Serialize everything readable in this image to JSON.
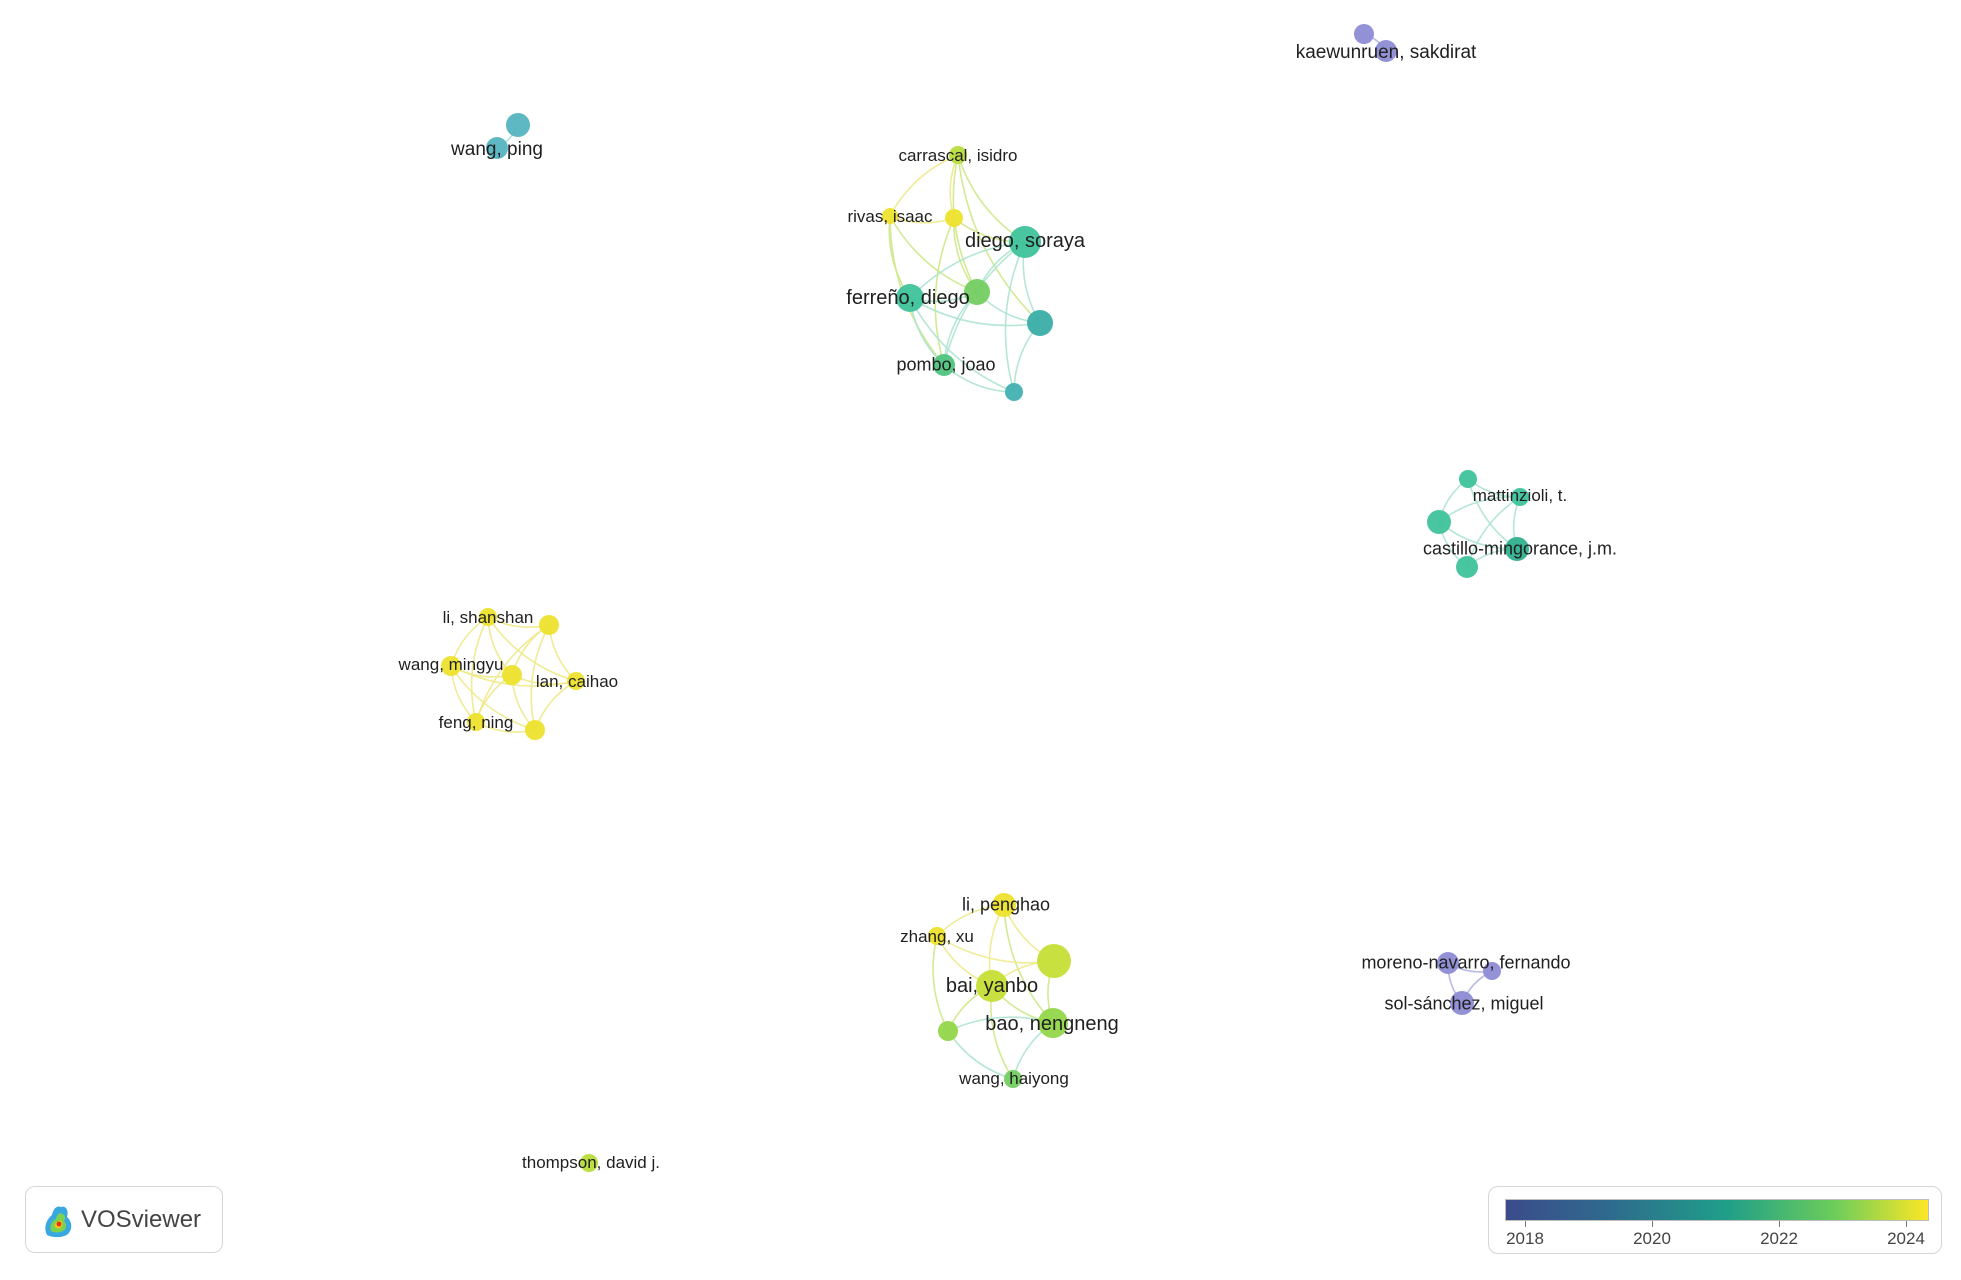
{
  "app": {
    "logo_text": "VOSviewer"
  },
  "colors": {
    "c2018": "#8e8cd4",
    "c2020": "#55b4c1",
    "c2021": "#3fc39a",
    "c2022": "#74cd62",
    "c2023": "#b8dd3c",
    "c2024": "#ede12d",
    "link_green": "#aee3cf",
    "link_yellow": "#eee98a",
    "link_lime": "#cde88a",
    "link_purple": "#b3b2e4",
    "link_teal": "#a8e0d6"
  },
  "nodes": [
    {
      "id": "kaewunruen",
      "label": "kaewunruen, sakdirat",
      "color": "#8e8cd4"
    },
    {
      "id": "kaew2",
      "label": "",
      "color": "#8e8cd4"
    },
    {
      "id": "wangping",
      "label": "wang, ping",
      "color": "#55b4c1"
    },
    {
      "id": "wangping2",
      "label": "",
      "color": "#55b4c1"
    },
    {
      "id": "carrascal",
      "label": "carrascal, isidro",
      "color": "#b8dd3c"
    },
    {
      "id": "rivas",
      "label": "rivas, isaac",
      "color": "#ede12d"
    },
    {
      "id": "c1y",
      "label": "",
      "color": "#ede12d"
    },
    {
      "id": "diego",
      "label": "diego, soraya",
      "color": "#3fc39a"
    },
    {
      "id": "ferreno",
      "label": "ferreño, diego",
      "color": "#3fc39a"
    },
    {
      "id": "c1g",
      "label": "",
      "color": "#74cd62"
    },
    {
      "id": "c1t",
      "label": "",
      "color": "#3aaea6"
    },
    {
      "id": "pombo",
      "label": "pombo, joao",
      "color": "#4fc47e"
    },
    {
      "id": "c1s",
      "label": "",
      "color": "#45b1b3"
    },
    {
      "id": "matt_top",
      "label": "",
      "color": "#3fc39a"
    },
    {
      "id": "mattinzioli",
      "label": "mattinzioli, t.",
      "color": "#3fc39a"
    },
    {
      "id": "matt_left",
      "label": "",
      "color": "#3fc39a"
    },
    {
      "id": "castillo",
      "label": "castillo-mingorance, j.m.",
      "color": "#2fb08e"
    },
    {
      "id": "matt_bot",
      "label": "",
      "color": "#3fc39a"
    },
    {
      "id": "lishanshan",
      "label": "li, shanshan",
      "color": "#ede12d"
    },
    {
      "id": "y_tr",
      "label": "",
      "color": "#ede12d"
    },
    {
      "id": "wangmingyu",
      "label": "wang, mingyu",
      "color": "#ede12d"
    },
    {
      "id": "y_mid",
      "label": "",
      "color": "#ede12d"
    },
    {
      "id": "lancaihao",
      "label": "lan, caihao",
      "color": "#ede12d"
    },
    {
      "id": "fengning",
      "label": "feng, ning",
      "color": "#ede12d"
    },
    {
      "id": "y_br",
      "label": "",
      "color": "#ede12d"
    },
    {
      "id": "lipenghao",
      "label": "li, penghao",
      "color": "#ede12d"
    },
    {
      "id": "zhangxu",
      "label": "zhang, xu",
      "color": "#ede12d"
    },
    {
      "id": "big_lime",
      "label": "",
      "color": "#c6df36"
    },
    {
      "id": "baiyanbo",
      "label": "bai, yanbo",
      "color": "#c6df36"
    },
    {
      "id": "baonengneng",
      "label": "bao, nengneng",
      "color": "#93d64a"
    },
    {
      "id": "g_left",
      "label": "",
      "color": "#93d64a"
    },
    {
      "id": "wanghaiyong",
      "label": "wang, haiyong",
      "color": "#74cd62"
    },
    {
      "id": "moreno",
      "label": "moreno-navarro, fernando",
      "color": "#8e8cd4"
    },
    {
      "id": "p_small",
      "label": "",
      "color": "#8e8cd4"
    },
    {
      "id": "solsanchez",
      "label": "sol-sánchez, miguel",
      "color": "#8e8cd4"
    },
    {
      "id": "thompson",
      "label": "thompson, david j.",
      "color": "#b8dd3c"
    }
  ],
  "links": [
    [
      "kaewunruen",
      "kaew2"
    ],
    [
      "wangping",
      "wangping2"
    ],
    [
      "carrascal",
      "rivas"
    ],
    [
      "carrascal",
      "c1y"
    ],
    [
      "carrascal",
      "diego"
    ],
    [
      "carrascal",
      "c1g"
    ],
    [
      "carrascal",
      "c1t"
    ],
    [
      "rivas",
      "c1y"
    ],
    [
      "rivas",
      "ferreno"
    ],
    [
      "rivas",
      "c1g"
    ],
    [
      "rivas",
      "pombo"
    ],
    [
      "c1y",
      "c1g"
    ],
    [
      "c1y",
      "diego"
    ],
    [
      "c1y",
      "pombo"
    ],
    [
      "diego",
      "ferreno"
    ],
    [
      "diego",
      "c1g"
    ],
    [
      "diego",
      "c1t"
    ],
    [
      "diego",
      "pombo"
    ],
    [
      "diego",
      "c1s"
    ],
    [
      "ferreno",
      "c1g"
    ],
    [
      "ferreno",
      "c1t"
    ],
    [
      "ferreno",
      "pombo"
    ],
    [
      "ferreno",
      "c1s"
    ],
    [
      "c1g",
      "c1t"
    ],
    [
      "c1g",
      "pombo"
    ],
    [
      "c1t",
      "c1s"
    ],
    [
      "pombo",
      "c1s"
    ],
    [
      "matt_top",
      "mattinzioli"
    ],
    [
      "matt_top",
      "matt_left"
    ],
    [
      "matt_top",
      "castillo"
    ],
    [
      "mattinzioli",
      "matt_left"
    ],
    [
      "mattinzioli",
      "castillo"
    ],
    [
      "mattinzioli",
      "matt_bot"
    ],
    [
      "matt_left",
      "castillo"
    ],
    [
      "matt_left",
      "matt_bot"
    ],
    [
      "castillo",
      "matt_bot"
    ],
    [
      "lishanshan",
      "y_tr"
    ],
    [
      "lishanshan",
      "wangmingyu"
    ],
    [
      "lishanshan",
      "y_mid"
    ],
    [
      "lishanshan",
      "lancaihao"
    ],
    [
      "lishanshan",
      "fengning"
    ],
    [
      "y_tr",
      "y_mid"
    ],
    [
      "y_tr",
      "lancaihao"
    ],
    [
      "y_tr",
      "y_br"
    ],
    [
      "y_tr",
      "fengning"
    ],
    [
      "wangmingyu",
      "y_mid"
    ],
    [
      "wangmingyu",
      "fengning"
    ],
    [
      "wangmingyu",
      "y_br"
    ],
    [
      "wangmingyu",
      "lancaihao"
    ],
    [
      "y_mid",
      "lancaihao"
    ],
    [
      "y_mid",
      "fengning"
    ],
    [
      "y_mid",
      "y_br"
    ],
    [
      "lancaihao",
      "y_br"
    ],
    [
      "fengning",
      "y_br"
    ],
    [
      "lipenghao",
      "zhangxu"
    ],
    [
      "lipenghao",
      "big_lime"
    ],
    [
      "lipenghao",
      "baiyanbo"
    ],
    [
      "lipenghao",
      "baonengneng"
    ],
    [
      "zhangxu",
      "baiyanbo"
    ],
    [
      "zhangxu",
      "big_lime"
    ],
    [
      "zhangxu",
      "g_left"
    ],
    [
      "big_lime",
      "baiyanbo"
    ],
    [
      "big_lime",
      "baonengneng"
    ],
    [
      "baiyanbo",
      "baonengneng"
    ],
    [
      "baiyanbo",
      "g_left"
    ],
    [
      "baiyanbo",
      "wanghaiyong"
    ],
    [
      "baonengneng",
      "g_left"
    ],
    [
      "baonengneng",
      "wanghaiyong"
    ],
    [
      "g_left",
      "wanghaiyong"
    ],
    [
      "moreno",
      "p_small"
    ],
    [
      "moreno",
      "solsanchez"
    ],
    [
      "p_small",
      "solsanchez"
    ]
  ],
  "legend": {
    "ticks": [
      "2018",
      "2020",
      "2022",
      "2024"
    ]
  }
}
